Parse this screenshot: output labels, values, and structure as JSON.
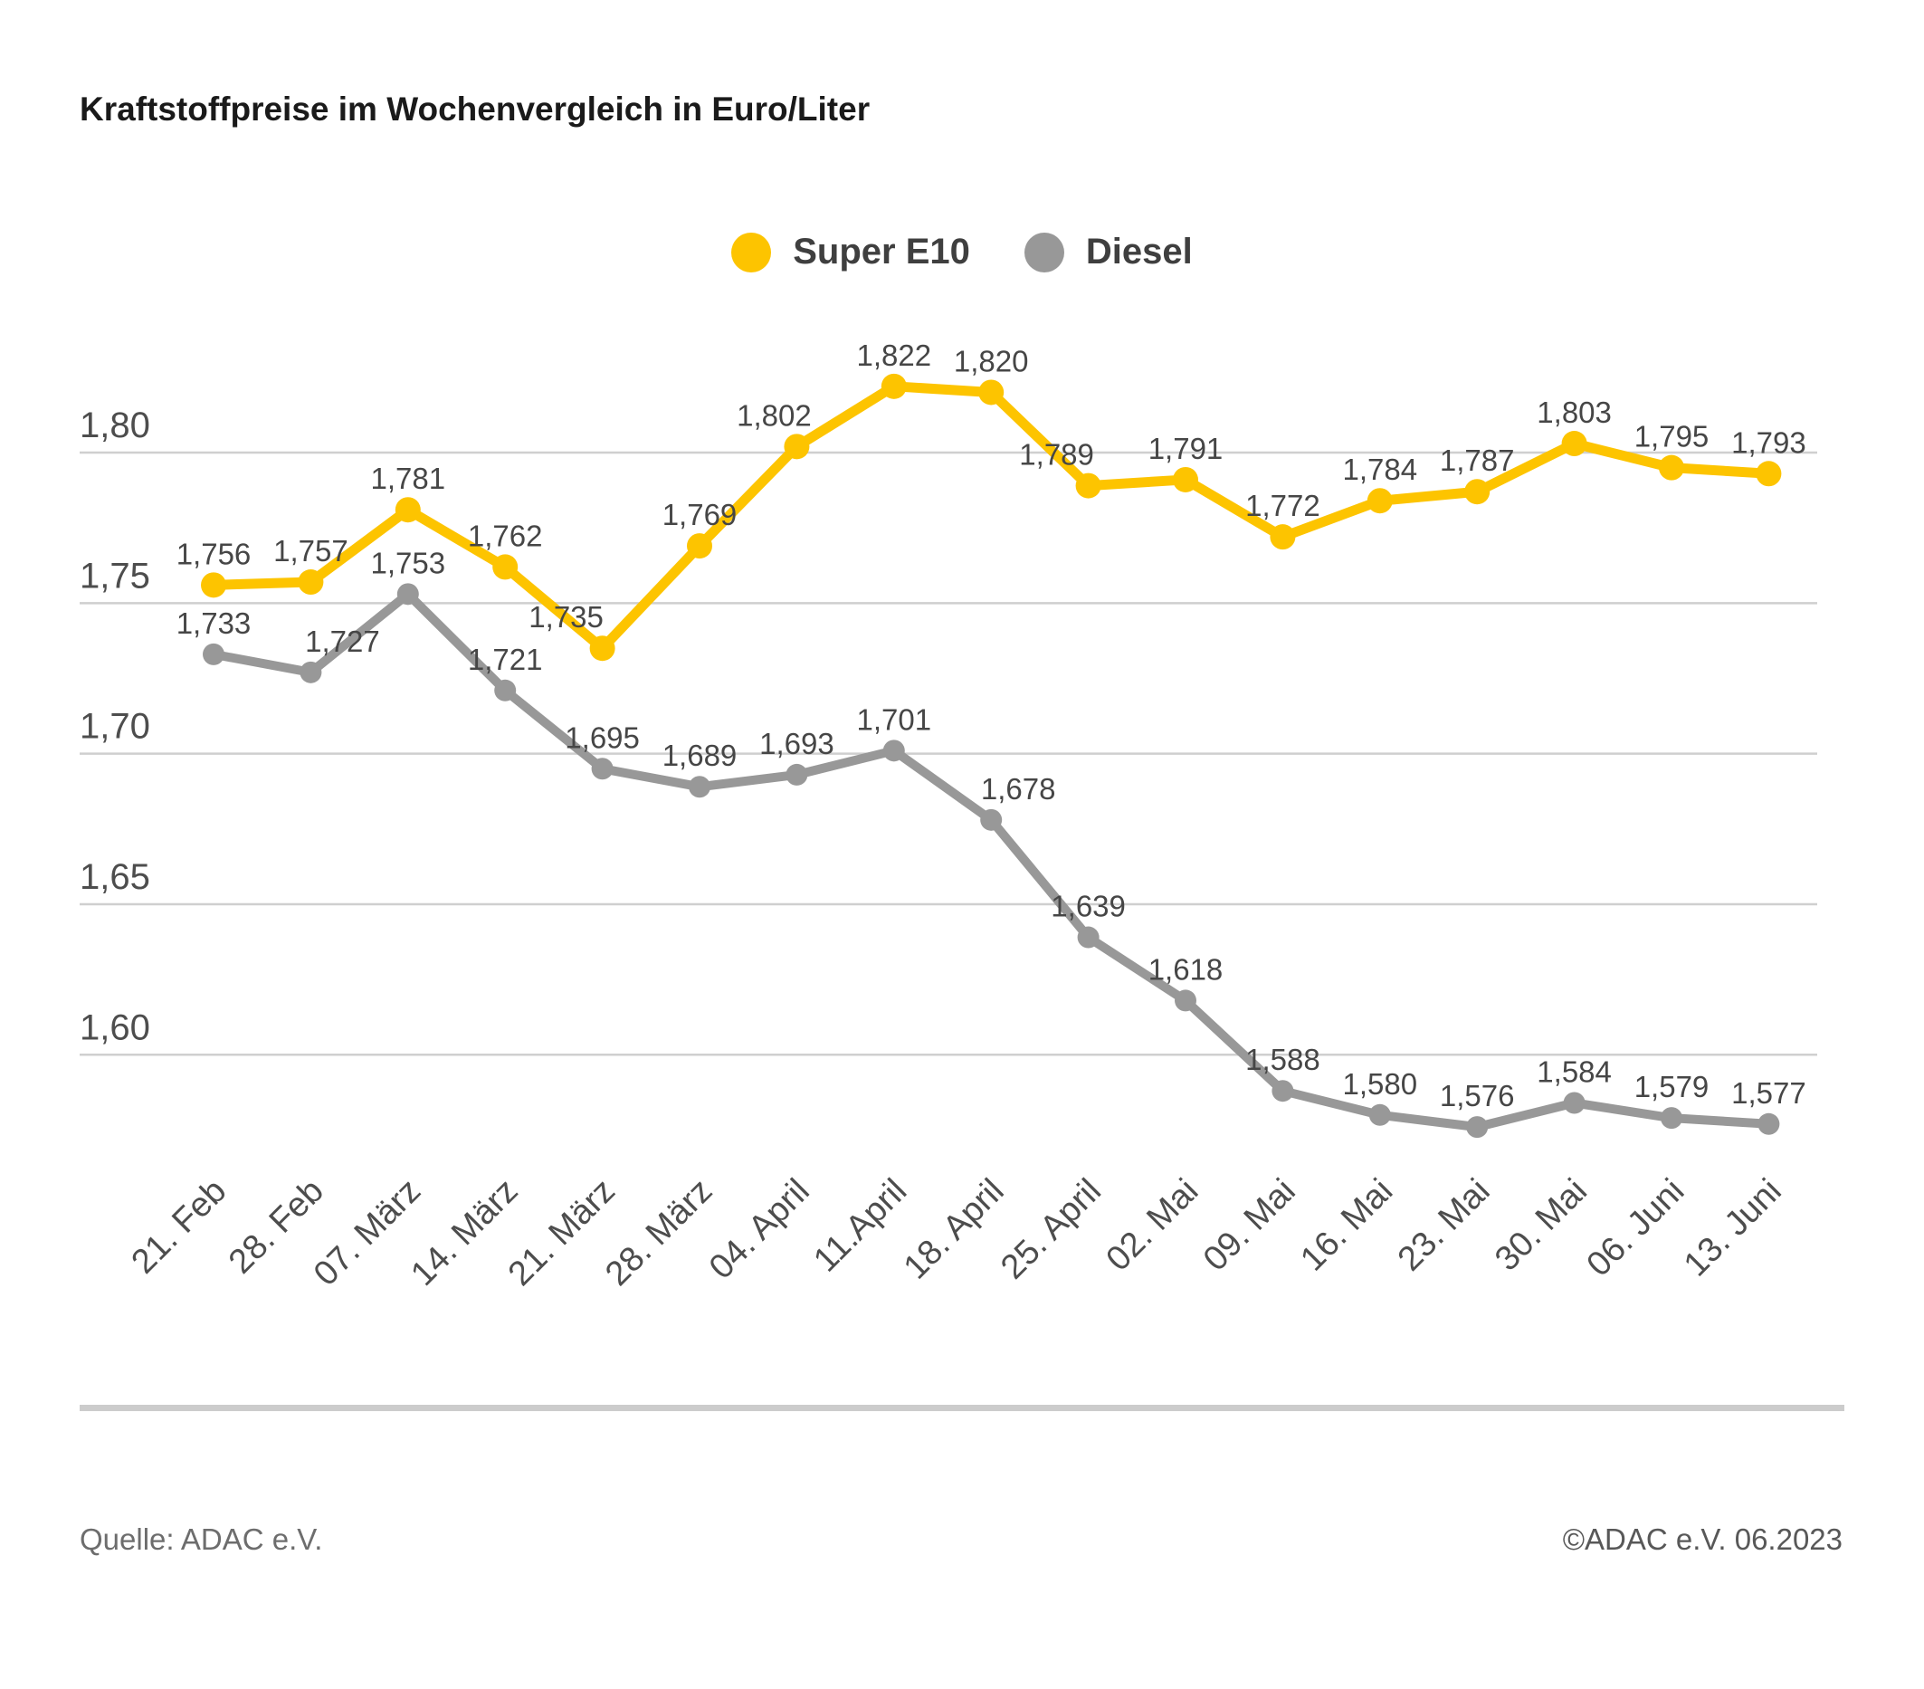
{
  "title": "Kraftstoffpreise im Wochenvergleich in Euro/Liter",
  "footer": {
    "source": "Quelle: ADAC e.V.",
    "copyright": "©ADAC e.V. 06.2023"
  },
  "chart_data": {
    "type": "line",
    "title": "Kraftstoffpreise im Wochenvergleich in Euro/Liter",
    "unit": "Euro/Liter",
    "decimal_separator": ",",
    "grid": true,
    "legend_position": "top-center",
    "value_labels": true,
    "categories": [
      "21. Feb",
      "28. Feb",
      "07. März",
      "14. März",
      "21. März",
      "28. März",
      "04. April",
      "11.April",
      "18. April",
      "25. April",
      "02. Mai",
      "09. Mai",
      "16. Mai",
      "23. Mai",
      "30. Mai",
      "06. Juni",
      "13. Juni"
    ],
    "series": [
      {
        "name": "Super E10",
        "color": "#FDC400",
        "values": [
          1.756,
          1.757,
          1.781,
          1.762,
          1.735,
          1.769,
          1.802,
          1.822,
          1.82,
          1.789,
          1.791,
          1.772,
          1.784,
          1.787,
          1.803,
          1.795,
          1.793
        ]
      },
      {
        "name": "Diesel",
        "color": "#989898",
        "values": [
          1.733,
          1.727,
          1.753,
          1.721,
          1.695,
          1.689,
          1.693,
          1.701,
          1.678,
          1.639,
          1.618,
          1.588,
          1.58,
          1.576,
          1.584,
          1.579,
          1.577
        ]
      }
    ],
    "y_ticks": [
      {
        "value": 1.8,
        "label": "1,80"
      },
      {
        "value": 1.75,
        "label": "1,75"
      },
      {
        "value": 1.7,
        "label": "1,70"
      },
      {
        "value": 1.65,
        "label": "1,65"
      },
      {
        "value": 1.6,
        "label": "1,60"
      }
    ],
    "ylim": [
      1.56,
      1.835
    ],
    "colors": {
      "grid": "#CFCFCF",
      "axis_text": "#4D4D4D",
      "value_label_text": "#464646"
    }
  }
}
